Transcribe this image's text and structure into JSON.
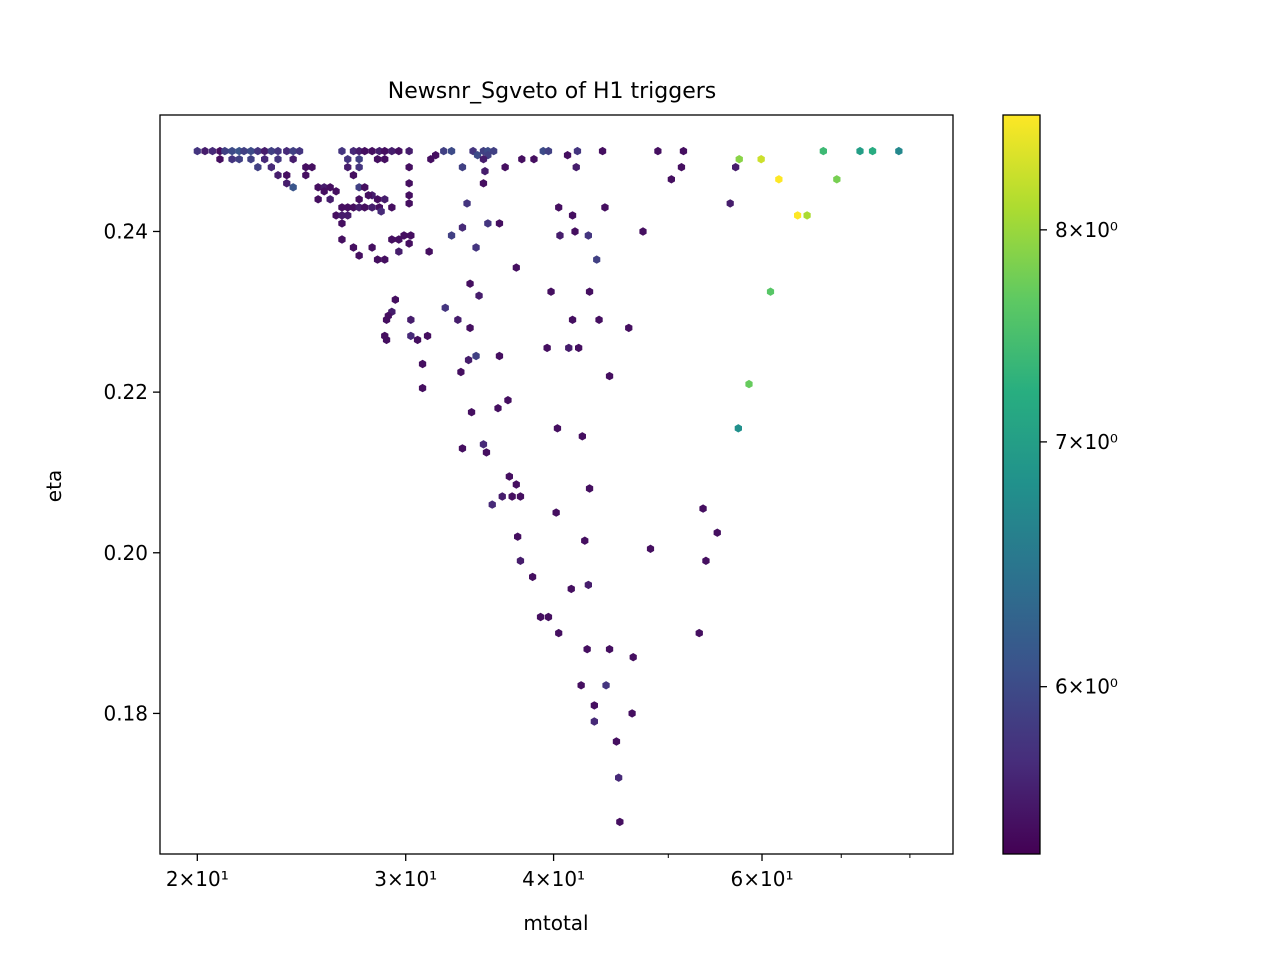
{
  "chart_data": {
    "type": "heatmap",
    "title": "Newsnr_Sgveto of H1 triggers",
    "xlabel": "mtotal",
    "ylabel": "eta",
    "xscale": "log",
    "xlim": [
      18.6,
      87.0
    ],
    "ylim": [
      0.1625,
      0.2545
    ],
    "x_ticks": [
      {
        "value": 20,
        "label": "2×10¹"
      },
      {
        "value": 30,
        "label": "3×10¹"
      },
      {
        "value": 40,
        "label": "4×10¹"
      },
      {
        "value": 60,
        "label": "6×10¹"
      }
    ],
    "x_minor_ticks": [
      50,
      70,
      80
    ],
    "y_ticks": [
      {
        "value": 0.18,
        "label": "0.18"
      },
      {
        "value": 0.2,
        "label": "0.20"
      },
      {
        "value": 0.22,
        "label": "0.22"
      },
      {
        "value": 0.24,
        "label": "0.24"
      }
    ],
    "colorbar": {
      "colormap": "viridis",
      "scale": "log",
      "range": [
        5.4,
        8.6
      ],
      "ticks": [
        {
          "value": 6,
          "label": "6×10⁰"
        },
        {
          "value": 7,
          "label": "7×10⁰"
        },
        {
          "value": 8,
          "label": "8×10⁰"
        }
      ]
    },
    "points": [
      [
        20.0,
        0.25,
        5.8
      ],
      [
        20.3,
        0.25,
        5.6
      ],
      [
        20.6,
        0.25,
        5.7
      ],
      [
        20.9,
        0.25,
        5.5
      ],
      [
        21.1,
        0.25,
        5.9
      ],
      [
        21.4,
        0.25,
        6.0
      ],
      [
        21.7,
        0.25,
        6.1
      ],
      [
        21.9,
        0.25,
        5.9
      ],
      [
        22.2,
        0.25,
        6.0
      ],
      [
        22.5,
        0.25,
        5.8
      ],
      [
        22.8,
        0.25,
        5.6
      ],
      [
        23.1,
        0.25,
        5.9
      ],
      [
        23.4,
        0.25,
        5.8
      ],
      [
        23.8,
        0.25,
        5.7
      ],
      [
        24.1,
        0.25,
        5.9
      ],
      [
        24.4,
        0.25,
        5.8
      ],
      [
        20.9,
        0.249,
        5.5
      ],
      [
        21.4,
        0.249,
        5.8
      ],
      [
        21.7,
        0.249,
        5.9
      ],
      [
        22.2,
        0.249,
        5.9
      ],
      [
        22.8,
        0.249,
        5.7
      ],
      [
        23.4,
        0.249,
        5.8
      ],
      [
        24.1,
        0.249,
        5.6
      ],
      [
        22.5,
        0.248,
        5.9
      ],
      [
        23.1,
        0.248,
        5.7
      ],
      [
        24.7,
        0.248,
        5.5
      ],
      [
        23.4,
        0.247,
        5.6
      ],
      [
        23.8,
        0.247,
        5.5
      ],
      [
        23.8,
        0.246,
        5.6
      ],
      [
        24.1,
        0.2455,
        6.1
      ],
      [
        25.0,
        0.248,
        5.5
      ],
      [
        24.7,
        0.247,
        5.5
      ],
      [
        25.3,
        0.2455,
        5.5
      ],
      [
        25.6,
        0.2455,
        5.6
      ],
      [
        25.9,
        0.2455,
        5.5
      ],
      [
        25.6,
        0.245,
        5.5
      ],
      [
        26.2,
        0.245,
        5.5
      ],
      [
        25.3,
        0.244,
        5.5
      ],
      [
        25.9,
        0.244,
        5.6
      ],
      [
        26.5,
        0.25,
        5.8
      ],
      [
        27.1,
        0.25,
        5.7
      ],
      [
        27.4,
        0.25,
        5.6
      ],
      [
        27.7,
        0.25,
        5.5
      ],
      [
        28.1,
        0.25,
        5.5
      ],
      [
        26.8,
        0.249,
        5.8
      ],
      [
        27.4,
        0.249,
        5.9
      ],
      [
        26.8,
        0.248,
        5.6
      ],
      [
        27.4,
        0.248,
        5.8
      ],
      [
        27.1,
        0.247,
        5.5
      ],
      [
        27.4,
        0.2455,
        5.9
      ],
      [
        27.7,
        0.2455,
        5.5
      ],
      [
        28.5,
        0.25,
        5.6
      ],
      [
        28.8,
        0.25,
        5.5
      ],
      [
        29.2,
        0.25,
        5.6
      ],
      [
        28.4,
        0.249,
        5.5
      ],
      [
        28.8,
        0.249,
        5.5
      ],
      [
        26.5,
        0.243,
        5.5
      ],
      [
        26.8,
        0.243,
        5.5
      ],
      [
        27.1,
        0.243,
        5.5
      ],
      [
        27.4,
        0.243,
        5.6
      ],
      [
        27.7,
        0.243,
        5.5
      ],
      [
        28.1,
        0.243,
        5.6
      ],
      [
        28.5,
        0.243,
        5.5
      ],
      [
        26.2,
        0.242,
        5.5
      ],
      [
        26.5,
        0.242,
        5.6
      ],
      [
        26.8,
        0.242,
        5.6
      ],
      [
        26.5,
        0.241,
        5.5
      ],
      [
        27.4,
        0.244,
        5.5
      ],
      [
        28.4,
        0.244,
        5.5
      ],
      [
        28.1,
        0.2445,
        5.6
      ],
      [
        27.9,
        0.2445,
        5.5
      ],
      [
        28.8,
        0.244,
        5.6
      ],
      [
        29.2,
        0.243,
        5.5
      ],
      [
        28.6,
        0.2425,
        5.7
      ],
      [
        26.5,
        0.239,
        5.5
      ],
      [
        27.1,
        0.238,
        5.5
      ],
      [
        27.4,
        0.237,
        5.5
      ],
      [
        28.1,
        0.238,
        5.5
      ],
      [
        28.4,
        0.2365,
        5.5
      ],
      [
        28.8,
        0.2365,
        5.5
      ],
      [
        29.6,
        0.239,
        5.5
      ],
      [
        29.9,
        0.2395,
        5.5
      ],
      [
        29.6,
        0.2375,
        5.6
      ],
      [
        30.2,
        0.2385,
        5.5
      ],
      [
        30.3,
        0.2395,
        5.5
      ],
      [
        29.2,
        0.239,
        5.5
      ],
      [
        30.2,
        0.246,
        5.5
      ],
      [
        30.2,
        0.2445,
        5.5
      ],
      [
        30.2,
        0.2435,
        5.5
      ],
      [
        30.2,
        0.248,
        5.5
      ],
      [
        30.2,
        0.25,
        5.6
      ],
      [
        29.6,
        0.25,
        5.5
      ],
      [
        32.3,
        0.25,
        5.9
      ],
      [
        32.8,
        0.25,
        6.0
      ],
      [
        31.8,
        0.2495,
        5.5
      ],
      [
        31.5,
        0.249,
        5.5
      ],
      [
        34.2,
        0.25,
        5.8
      ],
      [
        34.9,
        0.25,
        5.9
      ],
      [
        35.2,
        0.25,
        6.0
      ],
      [
        35.6,
        0.25,
        5.9
      ],
      [
        34.5,
        0.2495,
        6.0
      ],
      [
        35.2,
        0.2495,
        5.9
      ],
      [
        34.9,
        0.249,
        5.6
      ],
      [
        33.5,
        0.248,
        5.9
      ],
      [
        35.0,
        0.2475,
        5.6
      ],
      [
        36.4,
        0.248,
        5.5
      ],
      [
        34.9,
        0.246,
        5.5
      ],
      [
        33.8,
        0.2435,
        5.8
      ],
      [
        39.2,
        0.25,
        6.0
      ],
      [
        39.6,
        0.25,
        5.9
      ],
      [
        41.9,
        0.25,
        5.8
      ],
      [
        44.0,
        0.25,
        5.5
      ],
      [
        37.6,
        0.249,
        5.5
      ],
      [
        38.5,
        0.249,
        5.5
      ],
      [
        41.1,
        0.2495,
        5.5
      ],
      [
        41.8,
        0.248,
        5.6
      ],
      [
        49.0,
        0.25,
        5.5
      ],
      [
        51.5,
        0.25,
        5.5
      ],
      [
        51.3,
        0.248,
        5.5
      ],
      [
        50.3,
        0.2465,
        5.5
      ],
      [
        33.5,
        0.2405,
        5.7
      ],
      [
        32.8,
        0.2395,
        5.9
      ],
      [
        34.4,
        0.238,
        5.8
      ],
      [
        35.2,
        0.241,
        5.8
      ],
      [
        36.0,
        0.241,
        5.5
      ],
      [
        31.4,
        0.2375,
        5.5
      ],
      [
        37.2,
        0.2355,
        5.5
      ],
      [
        40.4,
        0.243,
        5.5
      ],
      [
        41.5,
        0.242,
        5.5
      ],
      [
        44.2,
        0.243,
        5.5
      ],
      [
        47.6,
        0.24,
        5.5
      ],
      [
        40.5,
        0.2395,
        5.6
      ],
      [
        42.8,
        0.2395,
        5.8
      ],
      [
        41.7,
        0.24,
        5.5
      ],
      [
        43.5,
        0.2365,
        5.9
      ],
      [
        39.8,
        0.2325,
        5.5
      ],
      [
        42.9,
        0.2325,
        5.5
      ],
      [
        34.0,
        0.2335,
        5.5
      ],
      [
        34.6,
        0.232,
        5.6
      ],
      [
        32.4,
        0.2305,
        5.8
      ],
      [
        33.2,
        0.229,
        5.6
      ],
      [
        34.0,
        0.228,
        5.5
      ],
      [
        31.3,
        0.227,
        5.5
      ],
      [
        30.7,
        0.2265,
        5.5
      ],
      [
        31.0,
        0.2235,
        5.5
      ],
      [
        30.3,
        0.227,
        5.7
      ],
      [
        30.3,
        0.229,
        5.6
      ],
      [
        31.0,
        0.2205,
        5.5
      ],
      [
        33.4,
        0.2225,
        5.5
      ],
      [
        33.9,
        0.224,
        5.6
      ],
      [
        34.4,
        0.2245,
        5.9
      ],
      [
        36.0,
        0.2245,
        5.5
      ],
      [
        29.4,
        0.2315,
        5.5
      ],
      [
        29.2,
        0.23,
        5.6
      ],
      [
        29.0,
        0.2295,
        5.5
      ],
      [
        28.9,
        0.229,
        5.5
      ],
      [
        28.8,
        0.227,
        5.5
      ],
      [
        28.9,
        0.2265,
        5.5
      ],
      [
        39.5,
        0.2255,
        5.5
      ],
      [
        41.2,
        0.2255,
        5.6
      ],
      [
        42.0,
        0.2255,
        5.5
      ],
      [
        43.7,
        0.229,
        5.5
      ],
      [
        41.5,
        0.229,
        5.5
      ],
      [
        46.3,
        0.228,
        5.5
      ],
      [
        44.6,
        0.222,
        5.5
      ],
      [
        34.1,
        0.2175,
        5.5
      ],
      [
        35.9,
        0.218,
        5.5
      ],
      [
        36.6,
        0.219,
        5.5
      ],
      [
        40.3,
        0.2155,
        5.5
      ],
      [
        42.3,
        0.2145,
        5.5
      ],
      [
        34.9,
        0.2135,
        5.7
      ],
      [
        33.5,
        0.213,
        5.5
      ],
      [
        35.1,
        0.2125,
        5.5
      ],
      [
        36.7,
        0.2095,
        5.5
      ],
      [
        37.2,
        0.2085,
        5.5
      ],
      [
        36.2,
        0.207,
        5.6
      ],
      [
        36.9,
        0.207,
        5.5
      ],
      [
        37.5,
        0.207,
        5.5
      ],
      [
        35.5,
        0.206,
        5.7
      ],
      [
        40.2,
        0.205,
        5.5
      ],
      [
        42.9,
        0.208,
        5.5
      ],
      [
        37.3,
        0.202,
        5.5
      ],
      [
        37.5,
        0.199,
        5.6
      ],
      [
        38.4,
        0.197,
        5.5
      ],
      [
        42.5,
        0.2015,
        5.5
      ],
      [
        48.3,
        0.2005,
        5.5
      ],
      [
        53.5,
        0.2055,
        5.5
      ],
      [
        55.0,
        0.2025,
        5.5
      ],
      [
        53.8,
        0.199,
        5.5
      ],
      [
        41.4,
        0.1955,
        5.5
      ],
      [
        42.8,
        0.196,
        5.6
      ],
      [
        39.0,
        0.192,
        5.5
      ],
      [
        39.6,
        0.192,
        5.5
      ],
      [
        40.4,
        0.19,
        5.5
      ],
      [
        53.1,
        0.19,
        5.5
      ],
      [
        42.7,
        0.188,
        5.5
      ],
      [
        44.6,
        0.188,
        5.5
      ],
      [
        46.7,
        0.187,
        5.5
      ],
      [
        42.2,
        0.1835,
        5.5
      ],
      [
        44.3,
        0.1835,
        5.8
      ],
      [
        43.3,
        0.181,
        5.5
      ],
      [
        43.3,
        0.179,
        5.7
      ],
      [
        46.6,
        0.18,
        5.5
      ],
      [
        45.2,
        0.1765,
        5.5
      ],
      [
        45.4,
        0.172,
        5.7
      ],
      [
        45.5,
        0.1665,
        5.5
      ],
      [
        57.4,
        0.249,
        7.9
      ],
      [
        59.9,
        0.249,
        8.3
      ],
      [
        57.0,
        0.248,
        5.6
      ],
      [
        56.4,
        0.2435,
        5.6
      ],
      [
        62.0,
        0.2465,
        8.6
      ],
      [
        64.3,
        0.242,
        8.6
      ],
      [
        65.5,
        0.242,
        8.1
      ],
      [
        69.4,
        0.2465,
        7.8
      ],
      [
        67.6,
        0.25,
        7.4
      ],
      [
        72.6,
        0.25,
        7.0
      ],
      [
        74.4,
        0.25,
        7.2
      ],
      [
        78.3,
        0.25,
        6.7
      ],
      [
        61.0,
        0.2325,
        7.6
      ],
      [
        58.5,
        0.221,
        7.7
      ],
      [
        57.3,
        0.2155,
        6.8
      ]
    ]
  }
}
